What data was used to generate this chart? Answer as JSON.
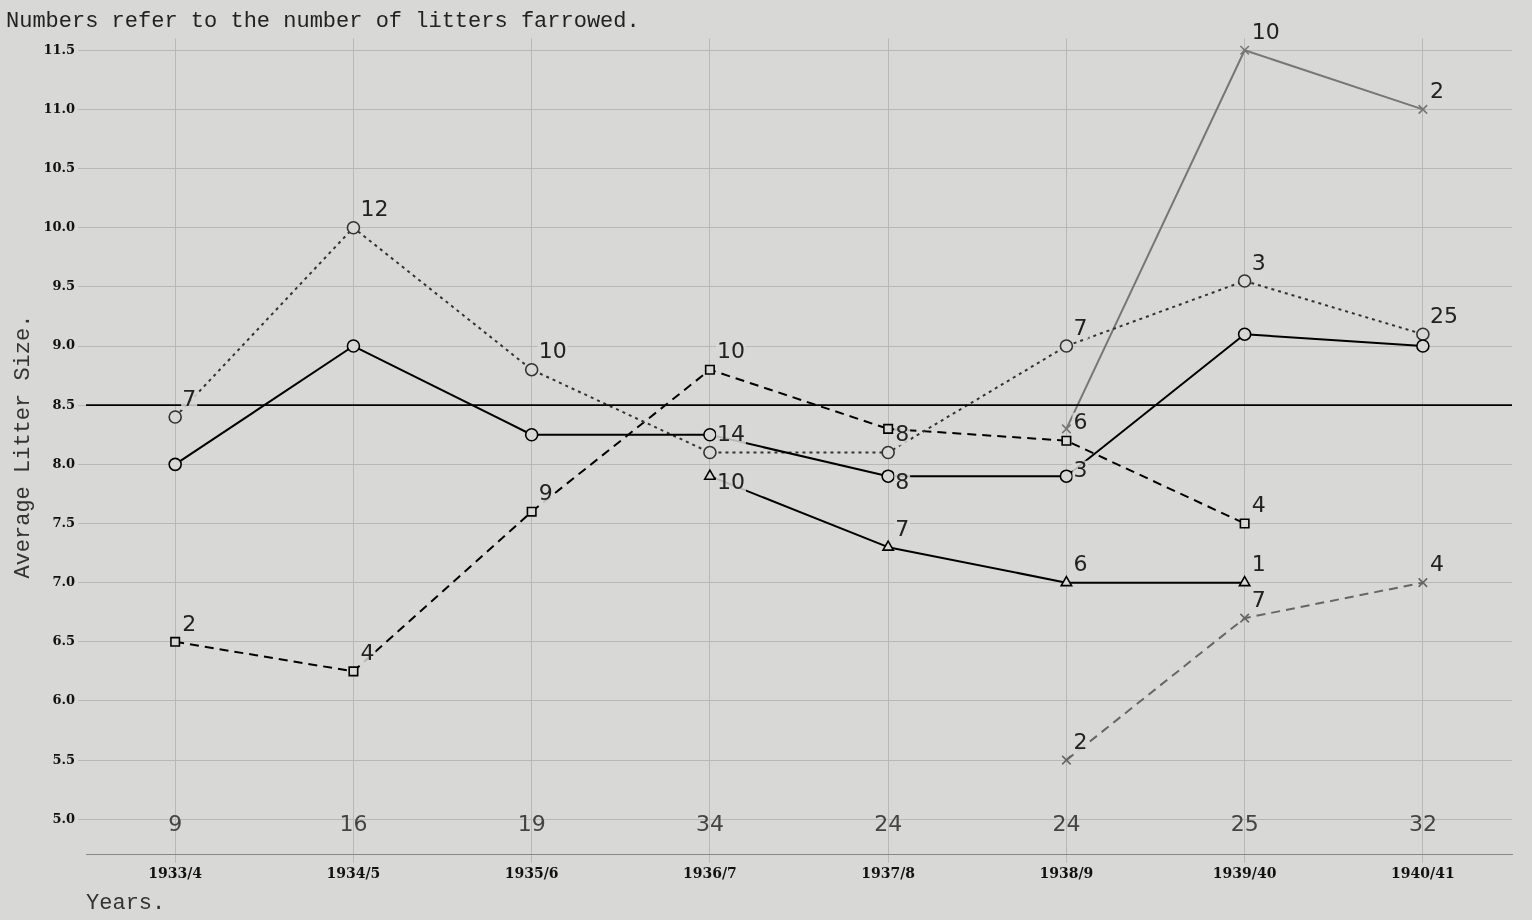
{
  "chart_data": {
    "type": "line",
    "title": "Numbers refer to the number of litters farrowed.",
    "xlabel": "Years.",
    "ylabel": "Average Litter Size.",
    "categories": [
      "1933/4",
      "1934/5",
      "1935/6",
      "1936/7",
      "1937/8",
      "1938/9",
      "1939/40",
      "1940/41"
    ],
    "series": [
      {
        "color": "#000000",
        "marker": "circle",
        "line_style": "solid",
        "values": [
          8.0,
          9.0,
          8.25,
          8.25,
          7.9,
          7.9,
          9.1,
          9.0
        ]
      },
      {
        "color": "#333333",
        "marker": "circle",
        "line_style": "dotted",
        "values": [
          8.4,
          10.0,
          8.8,
          8.1,
          8.1,
          9.0,
          9.55,
          9.1
        ]
      },
      {
        "color": "#000000",
        "marker": "square",
        "line_style": "dashed",
        "values": [
          6.5,
          6.25,
          7.6,
          8.8,
          8.3,
          8.2,
          7.5,
          null
        ]
      },
      {
        "color": "#000000",
        "marker": "triangle",
        "line_style": "solid",
        "values": [
          null,
          null,
          null,
          7.9,
          7.3,
          7.0,
          7.0,
          null
        ]
      },
      {
        "color": "#666666",
        "marker": "cross",
        "line_style": "dashed",
        "values": [
          null,
          null,
          null,
          null,
          null,
          5.5,
          6.7,
          7.0
        ]
      },
      {
        "color": "#777777",
        "marker": "cross",
        "line_style": "solid",
        "values": [
          null,
          null,
          null,
          null,
          null,
          8.3,
          11.5,
          11.0
        ]
      }
    ],
    "annotations": [
      "9",
      "16",
      "19",
      "34",
      "24",
      "24",
      "25",
      "32",
      {
        "text": "7",
        "x": "1933/4",
        "y": 8.4
      },
      {
        "text": "12",
        "x": "1934/5",
        "y": 10.0
      },
      {
        "text": "10",
        "x": "1935/6",
        "y": 8.8
      },
      {
        "text": "14",
        "x": "1936/7",
        "y": 8.1
      },
      {
        "text": "8",
        "x": "1937/8",
        "y": 8.1
      },
      {
        "text": "7",
        "x": "1938/9",
        "y": 9.0
      },
      {
        "text": "3",
        "x": "1939/40",
        "y": 9.55
      },
      {
        "text": "25",
        "x": "1940/41",
        "y": 9.1
      },
      {
        "text": "2",
        "x": "1933/4",
        "y": 6.5
      },
      {
        "text": "4",
        "x": "1934/5",
        "y": 6.25
      },
      {
        "text": "9",
        "x": "1935/6",
        "y": 7.6
      },
      {
        "text": "10",
        "x": "1936/7",
        "y": 8.8
      },
      {
        "text": "8",
        "x": "1937/8",
        "y": 8.3
      },
      {
        "text": "6",
        "x": "1938/9",
        "y": 8.2
      },
      {
        "text": "4",
        "x": "1939/40",
        "y": 7.5
      },
      {
        "text": "10",
        "x": "1936/7",
        "y": 7.9
      },
      {
        "text": "7",
        "x": "1937/8",
        "y": 7.3
      },
      {
        "text": "6",
        "x": "1938/9",
        "y": 7.0
      },
      {
        "text": "1",
        "x": "1939/40",
        "y": 7.0
      },
      {
        "text": "2",
        "x": "1938/9",
        "y": 5.5
      },
      {
        "text": "7",
        "x": "1939/40",
        "y": 6.7
      },
      {
        "text": "4",
        "x": "1940/41",
        "y": 7.0
      },
      {
        "text": "3",
        "x": "1938/9",
        "y": 8.3
      },
      {
        "text": "10",
        "x": "1939/40",
        "y": 11.5
      },
      {
        "text": "2",
        "x": "1940/41",
        "y": 11.0
      }
    ],
    "ref_lines": [
      {
        "axis": "y",
        "value": 8.5,
        "color": "#000000",
        "line_style": "solid"
      }
    ],
    "ylim": [
      4.7,
      11.6
    ],
    "yticks": [
      {
        "value": 5,
        "label": "5.0"
      },
      {
        "value": 5.5,
        "label": "5.5"
      },
      {
        "value": 6,
        "label": "6.0"
      },
      {
        "value": 6.5,
        "label": "6.5"
      },
      {
        "value": 7,
        "label": "7.0"
      },
      {
        "value": 7.5,
        "label": "7.5"
      },
      {
        "value": 8,
        "label": "8.0"
      },
      {
        "value": 8.5,
        "label": "8.5"
      },
      {
        "value": 9,
        "label": "9.0"
      },
      {
        "value": 9.5,
        "label": "9.5"
      },
      {
        "value": 10,
        "label": "10.0"
      },
      {
        "value": 10.5,
        "label": "10.5"
      },
      {
        "value": 11,
        "label": "11.0"
      },
      {
        "value": 11.5,
        "label": "11.5"
      }
    ],
    "grid": true,
    "legend": false
  }
}
